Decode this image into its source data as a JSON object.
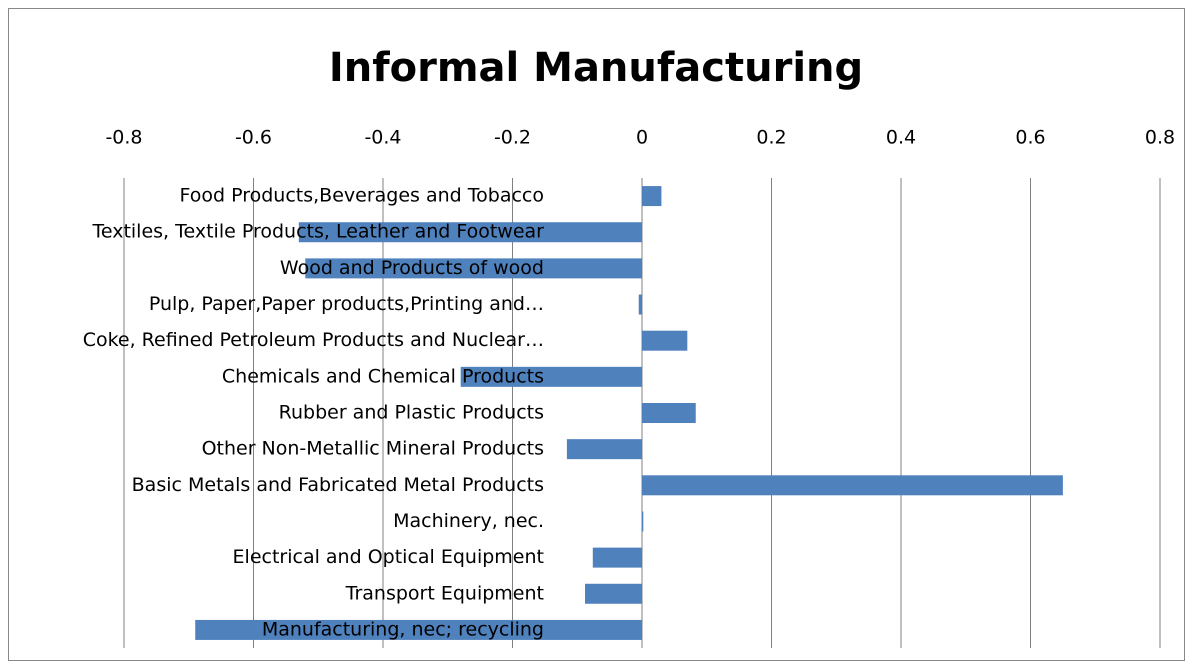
{
  "chart_data": {
    "type": "hbar",
    "title": "Informal Manufacturing",
    "categories": [
      "Food Products,Beverages and Tobacco",
      "Textiles, Textile Products, Leather and Footwear",
      "Wood and Products of wood",
      "Pulp, Paper,Paper products,Printing and…",
      "Coke, Refined Petroleum Products and Nuclear…",
      "Chemicals and  Chemical Products",
      "Rubber and Plastic Products",
      "Other Non-Metallic Mineral Products",
      "Basic Metals and Fabricated Metal Products",
      "Machinery, nec.",
      "Electrical and Optical Equipment",
      "Transport Equipment",
      "Manufacturing, nec; recycling"
    ],
    "values": [
      0.03,
      -0.53,
      -0.52,
      -0.005,
      0.07,
      -0.28,
      0.083,
      -0.116,
      0.65,
      0.002,
      -0.076,
      -0.088,
      -0.69
    ],
    "color": "#4f81bd",
    "xlim": [
      -0.8,
      0.8
    ],
    "xticks": [
      -0.8,
      -0.6,
      -0.4,
      -0.2,
      0,
      0.2,
      0.4,
      0.6,
      0.8
    ],
    "grid": true
  }
}
